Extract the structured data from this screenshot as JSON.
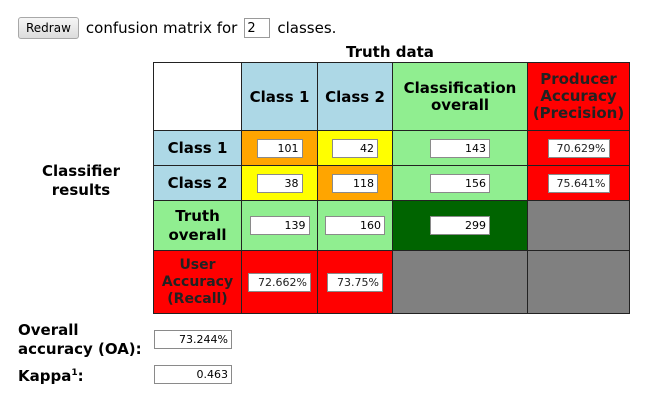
{
  "toolbar": {
    "redraw_label": "Redraw",
    "prefix": "confusion matrix for",
    "classes_value": "2",
    "suffix": "classes."
  },
  "headers": {
    "truth_data": "Truth data",
    "classifier_results": "Classifier results",
    "class_1": "Class 1",
    "class_2": "Class 2",
    "classification_overall": "Classification overall",
    "producer_accuracy": "Producer Accuracy (Precision)",
    "truth_overall": "Truth overall",
    "user_accuracy": "User Accuracy (Recall)"
  },
  "matrix": {
    "r1c1": "101",
    "r1c2": "42",
    "r1_overall": "143",
    "r1_producer": "70.629%",
    "r2c1": "38",
    "r2c2": "118",
    "r2_overall": "156",
    "r2_producer": "75.641%",
    "truth_c1": "139",
    "truth_c2": "160",
    "total": "299",
    "user_c1": "72.662%",
    "user_c2": "73.75%"
  },
  "summary": {
    "oa_label": "Overall accuracy (OA):",
    "oa_value": "73.244%",
    "kappa_label": "Kappa",
    "kappa_sup": "1",
    "kappa_colon": ":",
    "kappa_value": "0.463"
  },
  "colors": {
    "light_blue": "#add8e6",
    "light_green": "#90ee90",
    "red": "#ff0000",
    "orange": "#ffa500",
    "yellow": "#ffff00",
    "dark_green": "#006400",
    "gray": "#808080"
  }
}
